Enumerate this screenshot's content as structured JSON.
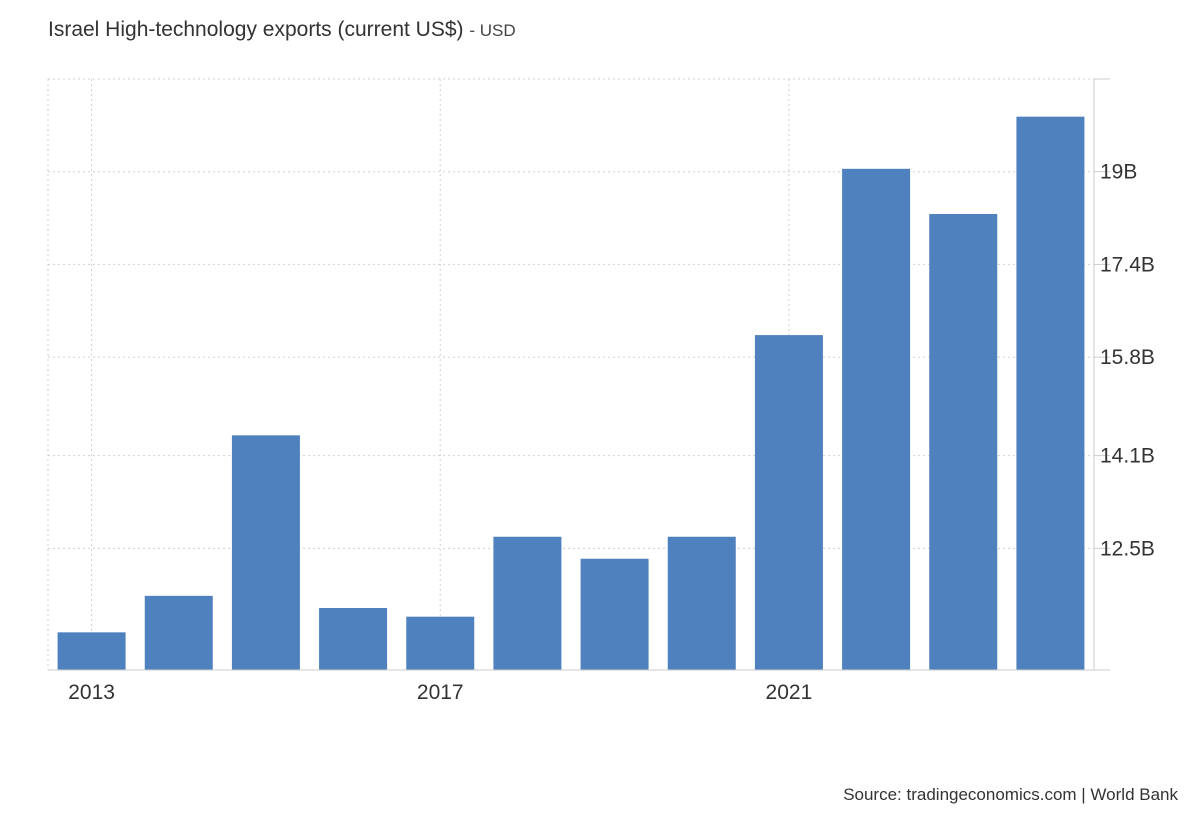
{
  "title": "Israel High-technology exports (current US$)",
  "unit_suffix": "- USD",
  "source": "Source: tradingeconomics.com | World Bank",
  "colors": {
    "bar": "#4e81bd",
    "grid": "#d0d0d0",
    "axis": "#cccccc",
    "text": "#333333"
  },
  "chart_data": {
    "type": "bar",
    "title": "Israel High-technology exports (current US$)",
    "xlabel": "",
    "ylabel": "",
    "categories": [
      "2013",
      "2014",
      "2015",
      "2016",
      "2017",
      "2018",
      "2019",
      "2020",
      "2021",
      "2022",
      "2023",
      "2024"
    ],
    "series": [
      {
        "values": [
          11.05,
          11.68,
          14.45,
          11.47,
          11.32,
          12.7,
          12.32,
          12.7,
          16.18,
          19.05,
          18.27,
          19.95
        ]
      }
    ],
    "unit": "B",
    "ylim": [
      10.4,
      20.6
    ],
    "yticks": [
      12.5,
      14.1,
      15.8,
      17.4,
      19
    ],
    "ytick_labels": [
      "12.5B",
      "14.1B",
      "15.8B",
      "17.4B",
      "19B"
    ],
    "xtick_labels": [
      "2013",
      "2017",
      "2021"
    ],
    "grid": true,
    "legend": "none",
    "y_axis_position": "right"
  }
}
